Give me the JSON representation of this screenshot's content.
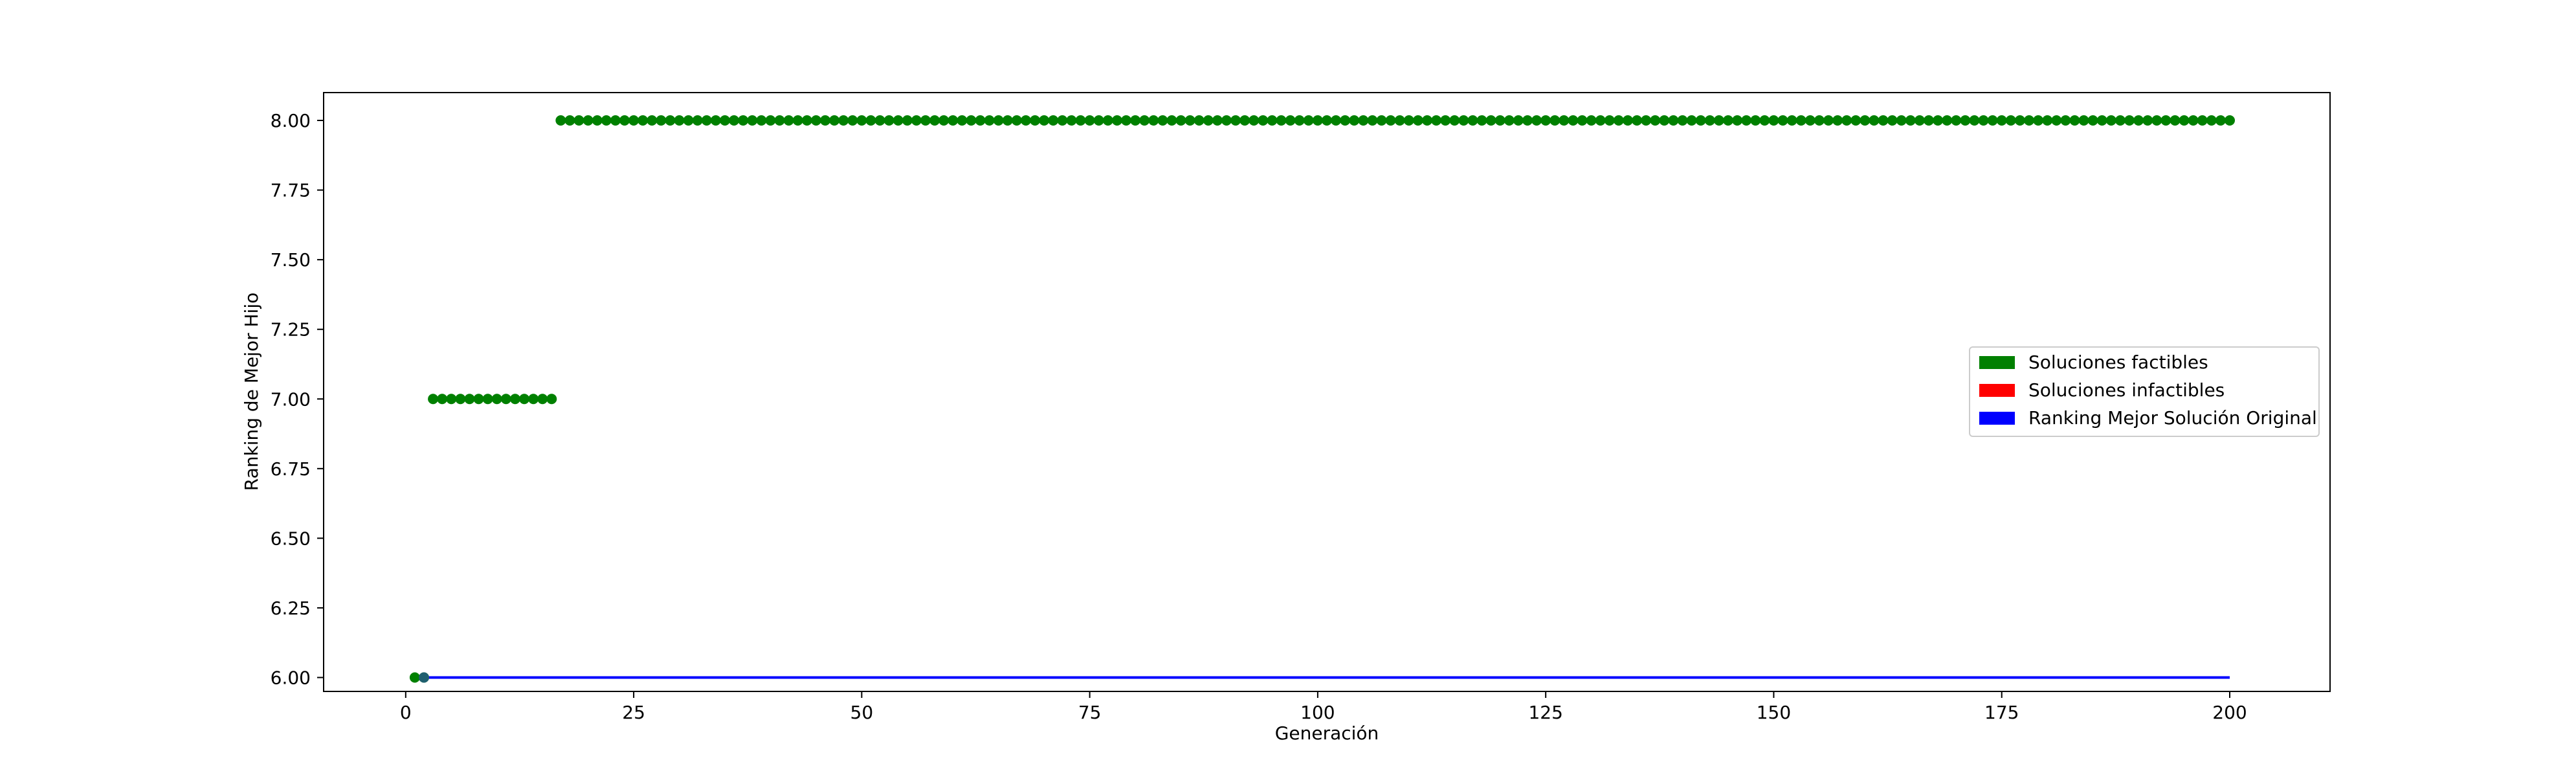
{
  "chart_data": {
    "type": "scatter",
    "title": "",
    "xlabel": "Generación",
    "ylabel": "Ranking de Mejor Hijo",
    "xlim": [
      -9,
      211
    ],
    "ylim": [
      5.95,
      8.1
    ],
    "x_ticks": [
      0,
      25,
      50,
      75,
      100,
      125,
      150,
      175,
      200
    ],
    "x_tick_labels": [
      "0",
      "25",
      "50",
      "75",
      "100",
      "125",
      "150",
      "175",
      "200"
    ],
    "y_ticks": [
      6.0,
      6.25,
      6.5,
      6.75,
      7.0,
      7.25,
      7.5,
      7.75,
      8.0
    ],
    "y_tick_labels": [
      "6.00",
      "6.25",
      "6.50",
      "6.75",
      "7.00",
      "7.25",
      "7.50",
      "7.75",
      "8.00"
    ],
    "grid": false,
    "legend_position": "center-right",
    "legend": [
      {
        "label": "Soluciones factibles",
        "color": "#008000"
      },
      {
        "label": "Soluciones infactibles",
        "color": "#ff0000"
      },
      {
        "label": "Ranking Mejor Solución Original",
        "color": "#0000ff"
      }
    ],
    "series": [
      {
        "name": "Soluciones factibles",
        "kind": "scatter",
        "color": "#008000",
        "segments": [
          {
            "x_from": 1,
            "x_to": 2,
            "y": 6.0
          },
          {
            "x_from": 3,
            "x_to": 16,
            "y": 7.0
          },
          {
            "x_from": 17,
            "x_to": 200,
            "y": 8.0
          }
        ]
      },
      {
        "name": "Ranking Mejor Solución Original",
        "kind": "line",
        "color": "#0000ff",
        "x": [
          2,
          200
        ],
        "y": [
          6.0,
          6.0
        ]
      }
    ]
  }
}
